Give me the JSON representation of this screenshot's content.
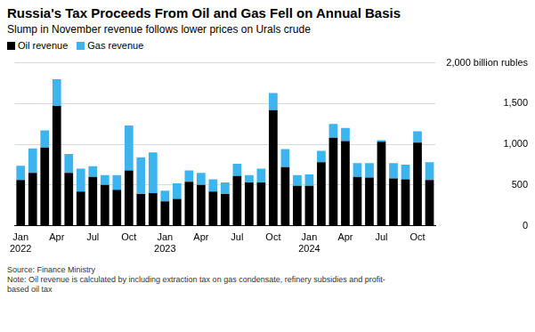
{
  "chart_data": {
    "type": "bar",
    "title": "Russia's Tax Proceeds From Oil and Gas Fell on Annual Basis",
    "subtitle": "Slump in November revenue follows lower prices on Urals crude",
    "source": "Source: Finance Ministry",
    "note": "Note: Oil revenue is calculated by including extraction tax on gas condensate, refinery subsidies and profit-based oil tax",
    "categories": [
      "Jan 2022",
      null,
      null,
      "Apr",
      null,
      null,
      "Jul",
      null,
      null,
      "Oct",
      null,
      null,
      "Jan 2023",
      null,
      null,
      "Apr",
      null,
      null,
      "Jul",
      null,
      null,
      "Oct",
      null,
      null,
      "Jan 2024",
      null,
      null,
      "Apr",
      null,
      null,
      "Jul",
      null,
      null,
      "Oct",
      null
    ],
    "series": [
      {
        "name": "Oil revenue",
        "color": "#000000",
        "values": [
          560,
          650,
          960,
          1470,
          650,
          420,
          600,
          500,
          440,
          680,
          390,
          400,
          300,
          330,
          540,
          500,
          420,
          390,
          610,
          530,
          530,
          1420,
          720,
          490,
          490,
          780,
          1080,
          1040,
          600,
          590,
          1030,
          580,
          570,
          1020,
          560
        ]
      },
      {
        "name": "Gas revenue",
        "color": "#3db4ee",
        "values": [
          175,
          300,
          210,
          330,
          230,
          280,
          130,
          120,
          180,
          550,
          450,
          500,
          130,
          190,
          140,
          150,
          150,
          140,
          150,
          90,
          170,
          210,
          220,
          130,
          140,
          140,
          170,
          160,
          170,
          180,
          20,
          190,
          180,
          140,
          220
        ]
      }
    ],
    "stacked": true,
    "ylim": [
      0,
      2000
    ],
    "yticks": [
      0,
      500,
      {
        "value": 1000,
        "label": "1,000"
      },
      {
        "value": 1500,
        "label": "1,500"
      },
      {
        "value": 2000,
        "label": "2,000 billion rubles"
      }
    ],
    "grid": true,
    "legend": "top-left"
  }
}
